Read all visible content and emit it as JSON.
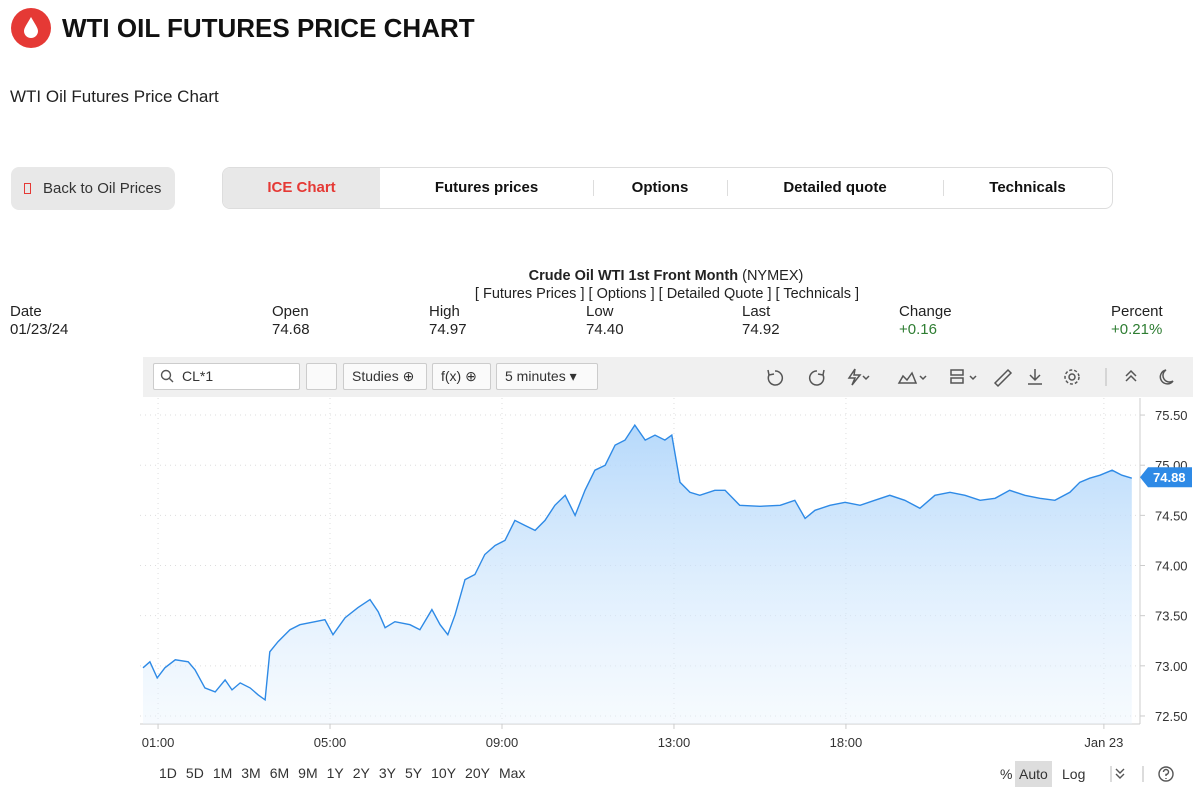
{
  "header": {
    "title": "WTI OIL FUTURES PRICE CHART",
    "subtitle": "WTI Oil Futures Price Chart"
  },
  "back_button": "Back to Oil Prices",
  "tabs": [
    "ICE Chart",
    "Futures prices",
    "Options",
    "Detailed quote",
    "Technicals"
  ],
  "quote": {
    "name": "Crude Oil WTI 1st Front Month",
    "exchange": "(NYMEX)",
    "links": [
      "[ Futures Prices ]",
      "[ Options ]",
      "[ Detailed Quote ]",
      "[ Technicals ]"
    ],
    "columns": [
      {
        "label": "Date",
        "value": "01/23/24"
      },
      {
        "label": "Open",
        "value": "74.68"
      },
      {
        "label": "High",
        "value": "74.97"
      },
      {
        "label": "Low",
        "value": "74.40"
      },
      {
        "label": "Last",
        "value": "74.92"
      },
      {
        "label": "Change",
        "value": "+0.16"
      },
      {
        "label": "Percent",
        "value": "+0.21%"
      }
    ]
  },
  "toolbar": {
    "symbol": "CL*1",
    "studies": "Studies",
    "fx": "f(x)",
    "interval": "5 minutes"
  },
  "periods": [
    "1D",
    "5D",
    "1M",
    "3M",
    "6M",
    "9M",
    "1Y",
    "2Y",
    "3Y",
    "5Y",
    "10Y",
    "20Y",
    "Max"
  ],
  "scale_options": [
    "%",
    "Auto",
    "Log"
  ],
  "chart_data": {
    "type": "area",
    "color": "#2e8ae6",
    "grid": true,
    "x": [
      0.65,
      0.81,
      0.98,
      1.16,
      1.4,
      1.7,
      1.86,
      2.09,
      2.33,
      2.56,
      2.72,
      2.91,
      3.14,
      3.33,
      3.49,
      3.6,
      3.79,
      4.07,
      4.3,
      4.65,
      4.88,
      5.07,
      5.35,
      5.65,
      5.93,
      6.12,
      6.28,
      6.51,
      6.86,
      7.09,
      7.37,
      7.56,
      7.74,
      7.91,
      8.14,
      8.37,
      8.6,
      8.84,
      9.07,
      9.3,
      9.53,
      9.77,
      10.0,
      10.23,
      10.47,
      10.7,
      10.93,
      11.16,
      11.4,
      11.63,
      11.86,
      12.09,
      12.33,
      12.56,
      12.79,
      12.95,
      13.14,
      13.37,
      13.6,
      13.95,
      14.19,
      14.53,
      15.0,
      15.47,
      15.81,
      16.05,
      16.28,
      16.63,
      16.98,
      17.33,
      17.67,
      18.02,
      18.37,
      18.72,
      19.07,
      19.42,
      19.77,
      20.12,
      20.47,
      20.81,
      21.16,
      21.51,
      21.86,
      22.21,
      22.44,
      22.67,
      22.91,
      23.19,
      23.42,
      23.65
    ],
    "values": [
      72.98,
      73.04,
      72.88,
      72.98,
      73.06,
      73.04,
      72.96,
      72.78,
      72.74,
      72.86,
      72.76,
      72.83,
      72.78,
      72.71,
      72.66,
      73.14,
      73.24,
      73.36,
      73.41,
      73.44,
      73.46,
      73.31,
      73.48,
      73.58,
      73.66,
      73.54,
      73.38,
      73.44,
      73.41,
      73.36,
      73.56,
      73.41,
      73.31,
      73.51,
      73.86,
      73.91,
      74.11,
      74.2,
      74.25,
      74.45,
      74.4,
      74.35,
      74.45,
      74.6,
      74.7,
      74.5,
      74.75,
      74.95,
      75.0,
      75.2,
      75.25,
      75.4,
      75.25,
      75.3,
      75.25,
      75.3,
      74.83,
      74.73,
      74.7,
      74.75,
      74.75,
      74.6,
      74.59,
      74.6,
      74.65,
      74.47,
      74.55,
      74.6,
      74.63,
      74.6,
      74.65,
      74.7,
      74.65,
      74.57,
      74.7,
      74.73,
      74.7,
      74.65,
      74.67,
      74.75,
      74.7,
      74.67,
      74.65,
      74.73,
      74.83,
      74.87,
      74.9,
      74.95,
      74.9,
      74.87
    ],
    "last_price": 74.88,
    "xlim": [
      0.58,
      23.84
    ],
    "xticks": [
      {
        "value": 1,
        "label": "01:00"
      },
      {
        "value": 5,
        "label": "05:00"
      },
      {
        "value": 9,
        "label": "09:00"
      },
      {
        "value": 13,
        "label": "13:00"
      },
      {
        "value": 17,
        "label": "18:00"
      },
      {
        "value": 23,
        "label": "Jan 23"
      }
    ],
    "ylim": [
      72.42,
      75.67
    ],
    "yticks": [
      {
        "value": 72.5,
        "label": "72.50"
      },
      {
        "value": 73,
        "label": "73.00"
      },
      {
        "value": 73.5,
        "label": "73.50"
      },
      {
        "value": 74,
        "label": "74.00"
      },
      {
        "value": 74.5,
        "label": "74.50"
      },
      {
        "value": 75,
        "label": "75.00"
      },
      {
        "value": 75.5,
        "label": "75.50"
      }
    ]
  }
}
